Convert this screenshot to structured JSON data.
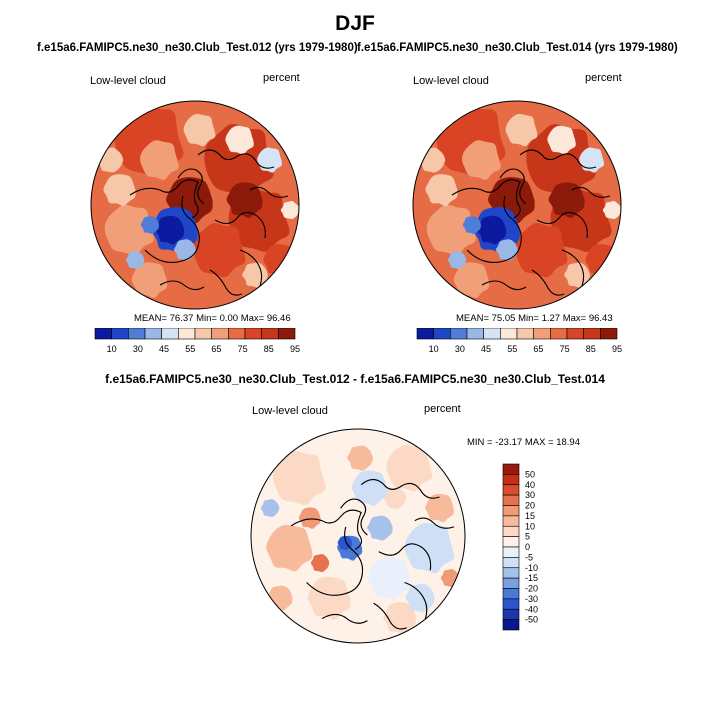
{
  "title": "DJF",
  "colors": {
    "land_outline": "#000000",
    "abs_palette": [
      "#0c1aa0",
      "#1f45c8",
      "#4e7ed8",
      "#9ab8e6",
      "#d6e3f5",
      "#fbe8d9",
      "#f7c7a9",
      "#f09f78",
      "#e56c44",
      "#d94424",
      "#c8361a",
      "#8c1a0b"
    ],
    "diff_palette": [
      "#0a1890",
      "#1a36b0",
      "#2a55cf",
      "#4a7ad8",
      "#7aa0e0",
      "#a6c2ec",
      "#cfdff5",
      "#e9f0fb",
      "#fdf1e8",
      "#fbd9c5",
      "#f7bb9c",
      "#f19a76",
      "#e8724f",
      "#dc4b2c",
      "#c43016",
      "#9a1a0a"
    ]
  },
  "panels": {
    "left": {
      "subtitle": "f.e15a6.FAMIPC5.ne30_ne30.Club_Test.012 (yrs 1979-1980)",
      "variable": "Low-level cloud",
      "units": "percent",
      "mean_label": "MEAN=",
      "mean": "76.37",
      "min_label": "Min=",
      "min": "0.00",
      "max_label": "Max=",
      "max": "96.46"
    },
    "right": {
      "subtitle": "f.e15a6.FAMIPC5.ne30_ne30.Club_Test.014 (yrs 1979-1980)",
      "variable": "Low-level cloud",
      "units": "percent",
      "mean_label": "MEAN=",
      "mean": "75.05",
      "min_label": "Min=",
      "min": "1.27",
      "max_label": "Max=",
      "max": "96.43"
    },
    "diff": {
      "subtitle": "f.e15a6.FAMIPC5.ne30_ne30.Club_Test.012 - f.e15a6.FAMIPC5.ne30_ne30.Club_Test.014",
      "variable": "Low-level cloud",
      "units": "percent",
      "stats": "MIN = -23.17 MAX =  18.94"
    }
  },
  "chart_data": [
    {
      "type": "heatmap",
      "projection": "polar-stereographic (north)",
      "title": "f.e15a6.FAMIPC5.ne30_ne30.Club_Test.012 (yrs 1979-1980)",
      "variable": "Low-level cloud",
      "units": "percent",
      "mean": 76.37,
      "min": 0.0,
      "max": 96.46,
      "colorbar_ticks": [
        10,
        30,
        45,
        55,
        65,
        75,
        85,
        95
      ]
    },
    {
      "type": "heatmap",
      "projection": "polar-stereographic (north)",
      "title": "f.e15a6.FAMIPC5.ne30_ne30.Club_Test.014 (yrs 1979-1980)",
      "variable": "Low-level cloud",
      "units": "percent",
      "mean": 75.05,
      "min": 1.27,
      "max": 96.43,
      "colorbar_ticks": [
        10,
        30,
        45,
        55,
        65,
        75,
        85,
        95
      ]
    },
    {
      "type": "heatmap",
      "projection": "polar-stereographic (north)",
      "title": "f.e15a6.FAMIPC5.ne30_ne30.Club_Test.012 - f.e15a6.FAMIPC5.ne30_ne30.Club_Test.014",
      "variable": "Low-level cloud",
      "units": "percent",
      "min": -23.17,
      "max": 18.94,
      "colorbar_ticks": [
        50,
        40,
        30,
        20,
        15,
        10,
        5,
        0,
        -5,
        -10,
        -15,
        -20,
        -30,
        -40,
        -50
      ]
    }
  ]
}
